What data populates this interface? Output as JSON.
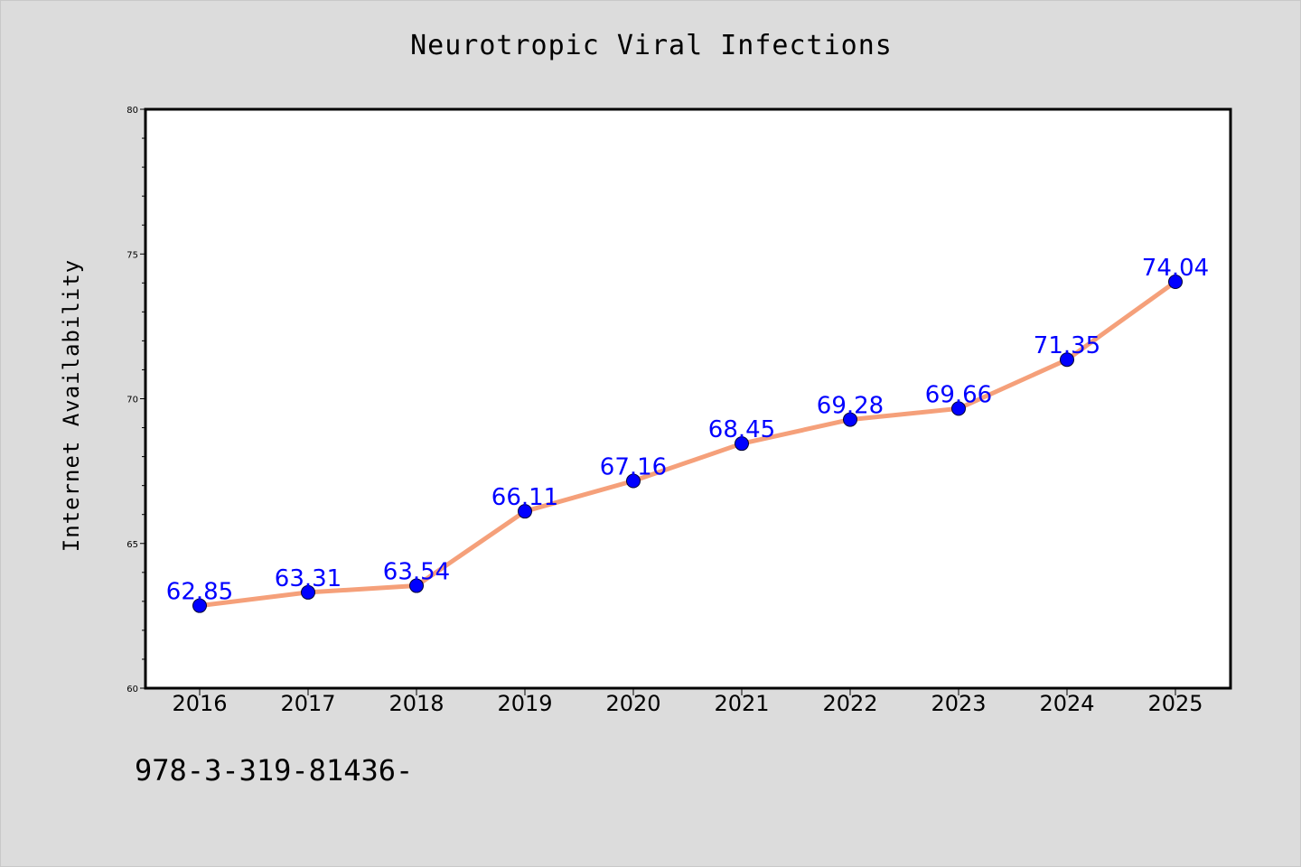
{
  "chart_data": {
    "type": "line",
    "title": "Neurotropic Viral Infections",
    "xlabel": "",
    "ylabel": "Internet Availability",
    "categories": [
      "2016",
      "2017",
      "2018",
      "2019",
      "2020",
      "2021",
      "2022",
      "2023",
      "2024",
      "2025"
    ],
    "series": [
      {
        "values": [
          62.85,
          63.31,
          63.54,
          66.11,
          67.16,
          68.45,
          69.28,
          69.66,
          71.35,
          74.04
        ]
      }
    ],
    "data_labels": [
      "62.85",
      "63.31",
      "63.54",
      "66.11",
      "67.16",
      "68.45",
      "69.28",
      "69.66",
      "71.35",
      "74.04"
    ],
    "ylim": [
      60,
      80
    ],
    "yticks": [
      "60",
      "65",
      "70",
      "75",
      "80"
    ],
    "grid": false,
    "legend": "none",
    "colors": {
      "line": "#f5a07a",
      "marker": "#0000ff",
      "data_label": "#0000ff",
      "background": "#dcdcdc",
      "plot_area": "#ffffff"
    }
  },
  "footer": {
    "text": "978-3-319-81436-"
  }
}
